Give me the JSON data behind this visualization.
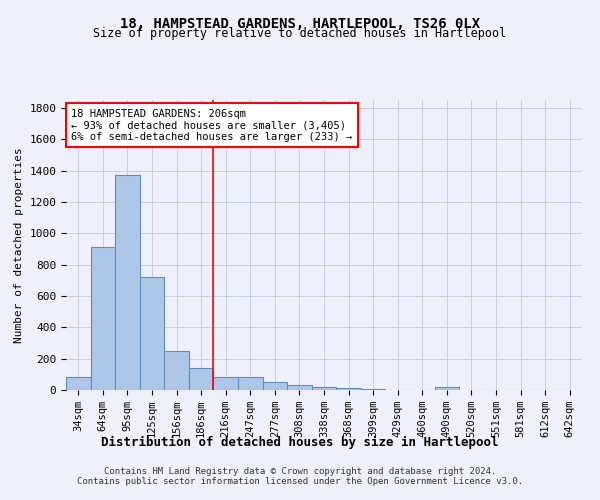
{
  "title1": "18, HAMPSTEAD GARDENS, HARTLEPOOL, TS26 0LX",
  "title2": "Size of property relative to detached houses in Hartlepool",
  "xlabel": "Distribution of detached houses by size in Hartlepool",
  "ylabel": "Number of detached properties",
  "categories": [
    "34sqm",
    "64sqm",
    "95sqm",
    "125sqm",
    "156sqm",
    "186sqm",
    "216sqm",
    "247sqm",
    "277sqm",
    "308sqm",
    "338sqm",
    "368sqm",
    "399sqm",
    "429sqm",
    "460sqm",
    "490sqm",
    "520sqm",
    "551sqm",
    "581sqm",
    "612sqm",
    "642sqm"
  ],
  "values": [
    80,
    910,
    1370,
    720,
    250,
    140,
    85,
    80,
    50,
    30,
    20,
    15,
    5,
    0,
    0,
    20,
    0,
    0,
    0,
    0,
    0
  ],
  "bar_color": "#aec6e8",
  "bar_edge_color": "#5a8fc0",
  "vline_x": 5.5,
  "vline_color": "red",
  "annotation_text": "18 HAMPSTEAD GARDENS: 206sqm\n← 93% of detached houses are smaller (3,405)\n6% of semi-detached houses are larger (233) →",
  "annotation_box_color": "white",
  "annotation_box_edge": "red",
  "ylim": [
    0,
    1850
  ],
  "yticks": [
    0,
    200,
    400,
    600,
    800,
    1000,
    1200,
    1400,
    1600,
    1800
  ],
  "footer1": "Contains HM Land Registry data © Crown copyright and database right 2024.",
  "footer2": "Contains public sector information licensed under the Open Government Licence v3.0.",
  "bg_color": "#eef1fb",
  "plot_bg_color": "#eef1fb",
  "grid_color": "#c8cfe0"
}
